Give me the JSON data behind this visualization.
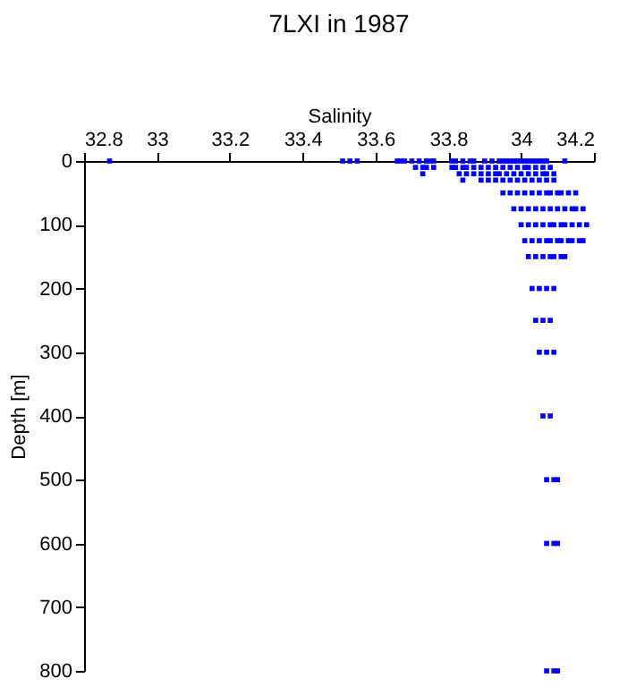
{
  "chart_data": {
    "type": "scatter",
    "title": "7LXI in 1987",
    "xlabel": "Salinity",
    "ylabel": "Depth [m]",
    "marker": "square",
    "grid": false,
    "xlim": [
      32.8,
      34.2
    ],
    "xticks": [
      32.8,
      33,
      33.2,
      33.4,
      33.6,
      33.8,
      34,
      34.2
    ],
    "ylim": [
      800,
      0
    ],
    "yticks": [
      0,
      100,
      200,
      300,
      400,
      500,
      600,
      700,
      800
    ],
    "series": [
      {
        "color": "#0000ff",
        "x": [
          32.87,
          33.51,
          33.53,
          33.55,
          33.66,
          33.67,
          33.68,
          33.7,
          33.72,
          33.74,
          33.75,
          33.76,
          33.81,
          33.82,
          33.84,
          33.86,
          33.87,
          33.9,
          33.92,
          33.94,
          33.95,
          33.96,
          33.97,
          33.98,
          33.99,
          34.0,
          34.01,
          34.02,
          34.03,
          34.04,
          34.05,
          34.06,
          34.07,
          34.12,
          33.71,
          33.73,
          33.74,
          33.76,
          33.81,
          33.82,
          33.84,
          33.85,
          33.87,
          33.89,
          33.91,
          33.93,
          33.95,
          33.97,
          33.99,
          34.01,
          34.02,
          34.04,
          34.06,
          34.08,
          33.73,
          33.83,
          33.85,
          33.87,
          33.89,
          33.91,
          33.93,
          33.94,
          33.96,
          33.98,
          34.0,
          34.02,
          34.04,
          34.06,
          34.07,
          34.09,
          33.84,
          33.89,
          33.91,
          33.93,
          33.95,
          33.97,
          33.99,
          34.01,
          34.03,
          34.05,
          34.07,
          34.09,
          33.95,
          33.97,
          33.99,
          34.01,
          34.03,
          34.05,
          34.07,
          34.08,
          34.1,
          34.11,
          34.13,
          34.15,
          33.98,
          34.0,
          34.02,
          34.04,
          34.06,
          34.08,
          34.1,
          34.12,
          34.14,
          34.15,
          34.17,
          34.0,
          34.02,
          34.04,
          34.06,
          34.08,
          34.09,
          34.11,
          34.12,
          34.14,
          34.16,
          34.18,
          34.01,
          34.03,
          34.05,
          34.07,
          34.08,
          34.1,
          34.11,
          34.13,
          34.14,
          34.16,
          34.17,
          34.02,
          34.04,
          34.06,
          34.08,
          34.09,
          34.11,
          34.12,
          34.03,
          34.05,
          34.07,
          34.09,
          34.04,
          34.06,
          34.08,
          34.05,
          34.07,
          34.09,
          34.06,
          34.08,
          34.07,
          34.09,
          34.1,
          34.07,
          34.09,
          34.1,
          34.07,
          34.09,
          34.1
        ],
        "values": [
          0,
          0,
          0,
          0,
          0,
          0,
          0,
          0,
          0,
          0,
          0,
          0,
          0,
          0,
          0,
          0,
          0,
          0,
          0,
          0,
          0,
          0,
          0,
          0,
          0,
          0,
          0,
          0,
          0,
          0,
          0,
          0,
          0,
          0,
          10,
          10,
          10,
          10,
          10,
          10,
          10,
          10,
          10,
          10,
          10,
          10,
          10,
          10,
          10,
          10,
          10,
          10,
          10,
          10,
          20,
          20,
          20,
          20,
          20,
          20,
          20,
          20,
          20,
          20,
          20,
          20,
          20,
          20,
          20,
          20,
          30,
          30,
          30,
          30,
          30,
          30,
          30,
          30,
          30,
          30,
          30,
          30,
          50,
          50,
          50,
          50,
          50,
          50,
          50,
          50,
          50,
          50,
          50,
          50,
          75,
          75,
          75,
          75,
          75,
          75,
          75,
          75,
          75,
          75,
          75,
          100,
          100,
          100,
          100,
          100,
          100,
          100,
          100,
          100,
          100,
          100,
          125,
          125,
          125,
          125,
          125,
          125,
          125,
          125,
          125,
          125,
          125,
          150,
          150,
          150,
          150,
          150,
          150,
          150,
          200,
          200,
          200,
          200,
          250,
          250,
          250,
          300,
          300,
          300,
          400,
          400,
          500,
          500,
          500,
          600,
          600,
          600,
          800,
          800,
          800
        ]
      }
    ]
  }
}
